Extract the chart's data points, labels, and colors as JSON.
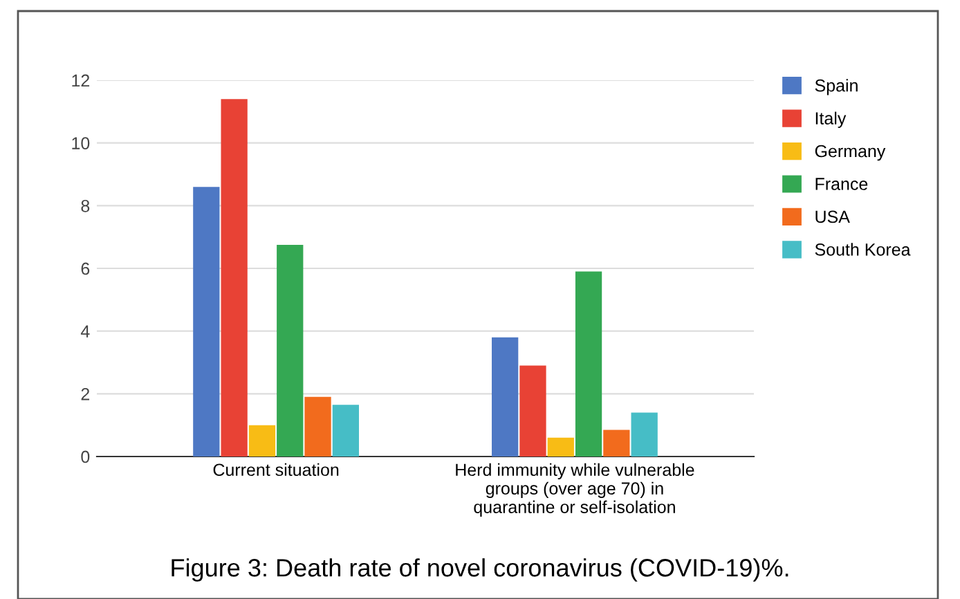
{
  "chart_data": {
    "type": "bar",
    "categories": [
      "Current situation",
      "Herd immunity while vulnerable\ngroups (over age 70) in\nquarantine or self-isolation"
    ],
    "series": [
      {
        "name": "Spain",
        "color": "#4e78c4",
        "values": [
          8.6,
          3.8
        ]
      },
      {
        "name": "Italy",
        "color": "#e84235",
        "values": [
          11.4,
          2.9
        ]
      },
      {
        "name": "Germany",
        "color": "#f8bc15",
        "values": [
          1.0,
          0.6
        ]
      },
      {
        "name": "France",
        "color": "#34a853",
        "values": [
          6.75,
          5.9
        ]
      },
      {
        "name": "USA",
        "color": "#f26b1d",
        "values": [
          1.9,
          0.85
        ]
      },
      {
        "name": "South Korea",
        "color": "#46bdc6",
        "values": [
          1.65,
          1.4
        ]
      }
    ],
    "ylim": [
      0,
      12
    ],
    "yticks": [
      0,
      2,
      4,
      6,
      8,
      10,
      12
    ],
    "grid": "y",
    "legend": "top right",
    "annotations": [
      "Figure 3: Death rate of novel coronavirus (COVID-19)%."
    ]
  }
}
